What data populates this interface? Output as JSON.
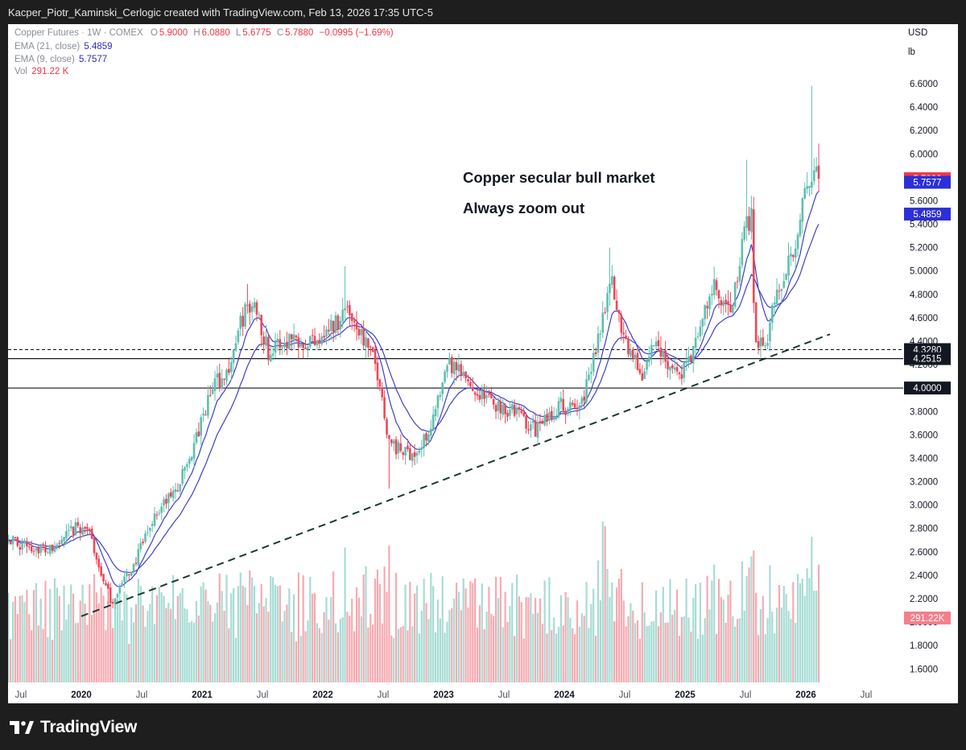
{
  "header": {
    "attribution": "Kacper_Piotr_Kaminski_Cerlogic created with TradingView.com, Feb 13, 2026 17:35 UTC-5"
  },
  "legend": {
    "symbol": "Copper Futures · 1W · COMEX",
    "ohlc": [
      {
        "k": "O",
        "v": "5.9000"
      },
      {
        "k": "H",
        "v": "6.0880"
      },
      {
        "k": "L",
        "v": "5.6775"
      },
      {
        "k": "C",
        "v": "5.7880"
      }
    ],
    "change": "−0.0995 (−1.69%)",
    "ema21_label": "EMA (21, close)",
    "ema21_value": "5.4859",
    "ema9_label": "EMA (9, close)",
    "ema9_value": "5.7577",
    "vol_label": "Vol",
    "vol_value": "291.22 K"
  },
  "units": {
    "currency": "USD",
    "unit": "lb"
  },
  "annotations": {
    "line1": "Copper secular bull market",
    "line2": "Always zoom out"
  },
  "brand": {
    "name": "TradingView"
  },
  "colors": {
    "up": "#5dbfb1",
    "down": "#ef4657",
    "ema21": "#3f3fc6",
    "ema9": "#3f3fc6"
  },
  "chart_data": {
    "type": "candlestick",
    "timeframe": "1W",
    "y_axis": {
      "range": [
        1.5,
        6.75
      ],
      "ticks": [
        "6.6000",
        "6.4000",
        "6.2000",
        "6.0000",
        "5.8000",
        "5.6000",
        "5.4000",
        "5.2000",
        "5.0000",
        "4.8000",
        "4.6000",
        "4.4000",
        "4.2000",
        "4.0000",
        "3.8000",
        "3.6000",
        "3.4000",
        "3.2000",
        "3.0000",
        "2.8000",
        "2.6000",
        "2.4000",
        "2.2000",
        "2.0000",
        "1.8000",
        "1.6000"
      ]
    },
    "x_axis": {
      "labels": [
        {
          "text": "Jul",
          "t": 2019.5,
          "bold": false
        },
        {
          "text": "2020",
          "t": 2020.0,
          "bold": true
        },
        {
          "text": "Jul",
          "t": 2020.5,
          "bold": false
        },
        {
          "text": "2021",
          "t": 2021.0,
          "bold": true
        },
        {
          "text": "Jul",
          "t": 2021.5,
          "bold": false
        },
        {
          "text": "2022",
          "t": 2022.0,
          "bold": true
        },
        {
          "text": "Jul",
          "t": 2022.5,
          "bold": false
        },
        {
          "text": "2023",
          "t": 2023.0,
          "bold": true
        },
        {
          "text": "Jul",
          "t": 2023.5,
          "bold": false
        },
        {
          "text": "2024",
          "t": 2024.0,
          "bold": true
        },
        {
          "text": "Jul",
          "t": 2024.5,
          "bold": false
        },
        {
          "text": "2025",
          "t": 2025.0,
          "bold": true
        },
        {
          "text": "Jul",
          "t": 2025.5,
          "bold": false
        },
        {
          "text": "2026",
          "t": 2026.0,
          "bold": true
        },
        {
          "text": "Jul",
          "t": 2026.5,
          "bold": false
        }
      ]
    },
    "price_path": [
      [
        2019.28,
        2.76
      ],
      [
        2019.5,
        2.66
      ],
      [
        2019.75,
        2.61
      ],
      [
        2019.95,
        2.8
      ],
      [
        2020.05,
        2.81
      ],
      [
        2020.2,
        2.3
      ],
      [
        2020.25,
        2.17
      ],
      [
        2020.45,
        2.52
      ],
      [
        2020.6,
        2.9
      ],
      [
        2020.8,
        3.15
      ],
      [
        2020.95,
        3.55
      ],
      [
        2021.1,
        4.05
      ],
      [
        2021.2,
        4.1
      ],
      [
        2021.35,
        4.65
      ],
      [
        2021.45,
        4.7
      ],
      [
        2021.55,
        4.3
      ],
      [
        2021.75,
        4.45
      ],
      [
        2021.9,
        4.4
      ],
      [
        2022.1,
        4.55
      ],
      [
        2022.2,
        4.7
      ],
      [
        2022.35,
        4.4
      ],
      [
        2022.45,
        4.15
      ],
      [
        2022.55,
        3.55
      ],
      [
        2022.65,
        3.45
      ],
      [
        2022.8,
        3.45
      ],
      [
        2022.95,
        3.85
      ],
      [
        2023.05,
        4.2
      ],
      [
        2023.15,
        4.1
      ],
      [
        2023.3,
        3.95
      ],
      [
        2023.45,
        3.85
      ],
      [
        2023.6,
        3.8
      ],
      [
        2023.75,
        3.65
      ],
      [
        2023.85,
        3.72
      ],
      [
        2023.95,
        3.85
      ],
      [
        2024.1,
        3.8
      ],
      [
        2024.2,
        4.05
      ],
      [
        2024.3,
        4.55
      ],
      [
        2024.38,
        4.95
      ],
      [
        2024.45,
        4.6
      ],
      [
        2024.55,
        4.3
      ],
      [
        2024.65,
        4.1
      ],
      [
        2024.75,
        4.4
      ],
      [
        2024.85,
        4.25
      ],
      [
        2024.95,
        4.1
      ],
      [
        2025.05,
        4.25
      ],
      [
        2025.15,
        4.6
      ],
      [
        2025.25,
        4.9
      ],
      [
        2025.3,
        4.65
      ],
      [
        2025.4,
        4.7
      ],
      [
        2025.48,
        5.3
      ],
      [
        2025.55,
        5.5
      ],
      [
        2025.58,
        4.38
      ],
      [
        2025.68,
        4.45
      ],
      [
        2025.8,
        4.95
      ],
      [
        2025.9,
        5.2
      ],
      [
        2025.95,
        5.45
      ],
      [
        2026.02,
        5.75
      ],
      [
        2026.07,
        5.8
      ],
      [
        2026.11,
        5.79
      ]
    ],
    "key_candles": {
      "2020_low": 2.15,
      "2021_high": 4.89,
      "2022_high": 5.04,
      "2022_low": 3.14,
      "2024_high": 5.2,
      "2025_jul_high": 5.95,
      "2026_high": 6.58
    },
    "ema": {
      "ema21_last": 5.4859,
      "ema9_last": 5.7577
    },
    "volume": {
      "last": "291.22K"
    },
    "horizontal_lines": [
      {
        "label": "4.3280",
        "price": 4.328,
        "style": "dashed"
      },
      {
        "label": "4.2515",
        "price": 4.2515,
        "style": "solid"
      },
      {
        "label": "4.0000",
        "price": 4.0,
        "style": "solid"
      }
    ],
    "trendline": {
      "style": "dashed",
      "from": {
        "t": 2020.0,
        "price": 2.05
      },
      "to": {
        "t": 2026.2,
        "price": 4.46
      }
    },
    "price_labels": [
      {
        "label": "5.7880",
        "price": 5.788,
        "color": "#f23645"
      },
      {
        "label": "5.7577",
        "price": 5.7577,
        "color": "#2c2fd8"
      },
      {
        "label": "5.4859",
        "price": 5.4859,
        "color": "#2c2fd8"
      },
      {
        "label": "291.22K",
        "price": 2.035,
        "color": "#f57f8b"
      }
    ]
  }
}
